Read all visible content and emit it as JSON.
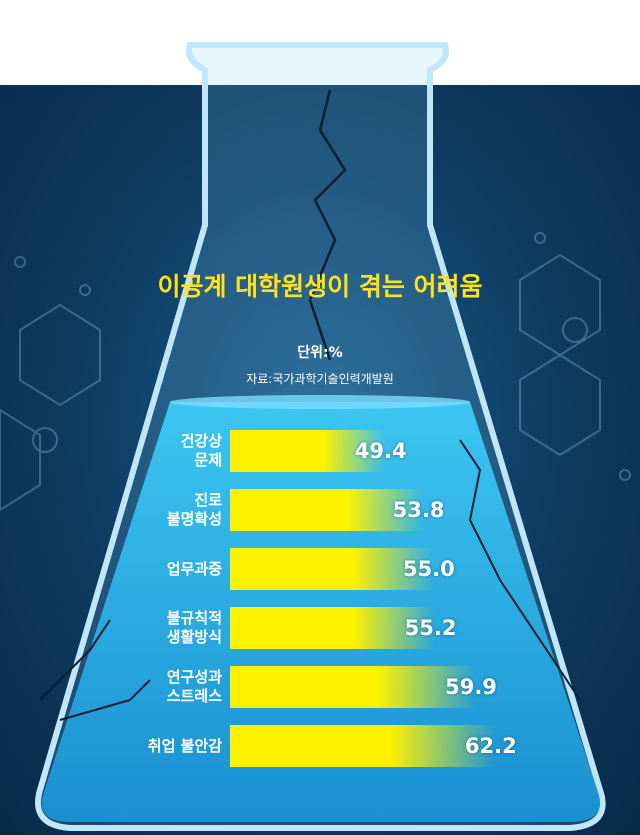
{
  "chart_data": {
    "type": "bar",
    "orientation": "horizontal",
    "title": "이공계 대학원생이 겪는 어려움",
    "unit": "단위:%",
    "source": "자료:국가과학기술인력개발원",
    "categories": [
      "건강상 문제",
      "진로 불명확성",
      "업무과중",
      "불규칙적 생활방식",
      "연구성과 스트레스",
      "취업 불안감"
    ],
    "category_lines": [
      [
        "건강상",
        "문제"
      ],
      [
        "진로",
        "불명확성"
      ],
      [
        "업무과중"
      ],
      [
        "불규칙적",
        "생활방식"
      ],
      [
        "연구성과",
        "스트레스"
      ],
      [
        "취업 불안감"
      ]
    ],
    "values": [
      49.4,
      53.8,
      55.0,
      55.2,
      59.9,
      62.2
    ],
    "value_labels": [
      "49.4",
      "53.8",
      "55.0",
      "55.2",
      "59.9",
      "62.2"
    ],
    "colors": {
      "bar": "#fff200",
      "title": "#ffe21a",
      "background": "#0f3d63",
      "liquid": "#29b6e8"
    }
  }
}
